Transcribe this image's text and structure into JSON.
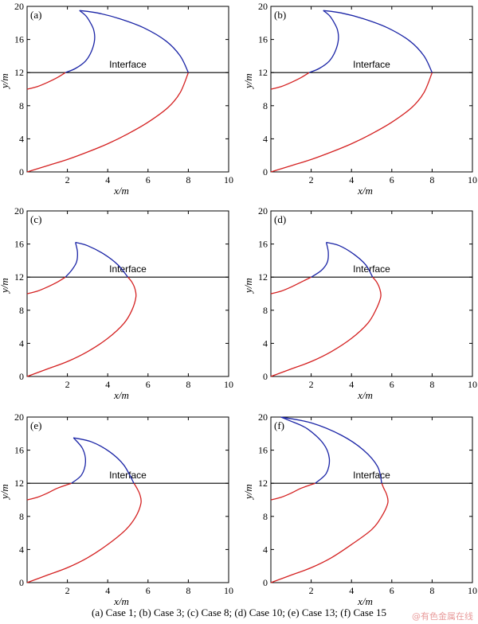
{
  "caption": "(a) Case 1; (b) Case 3; (c) Case 8; (d) Case 10; (e) Case 13; (f) Case 15",
  "watermark": "@有色金属在线",
  "colors": {
    "lower": "#d42020",
    "upper": "#1a24a6",
    "interface": "#000000"
  },
  "chart_data": [
    {
      "type": "line",
      "panel": "(a)",
      "xlabel": "x/m",
      "ylabel": "y/m",
      "xlim": [
        0,
        10
      ],
      "ylim": [
        0,
        20
      ],
      "xticks": [
        2,
        4,
        6,
        8,
        10
      ],
      "yticks": [
        0,
        4,
        8,
        12,
        16,
        20
      ],
      "interface": {
        "y": 12,
        "label": "Interface"
      },
      "series": [
        {
          "curve": "lower",
          "x": [
            0,
            1,
            2,
            3,
            4,
            5,
            6,
            7,
            7.6,
            8.0
          ],
          "y": [
            0,
            0.75,
            1.5,
            2.4,
            3.4,
            4.6,
            6.0,
            7.8,
            9.6,
            12.0
          ]
        },
        {
          "curve": "lower",
          "x": [
            0,
            0.5,
            1,
            1.5,
            1.9
          ],
          "y": [
            10.0,
            10.3,
            10.8,
            11.4,
            12.0
          ]
        },
        {
          "curve": "upper",
          "x": [
            1.9,
            2.4,
            2.9,
            3.2,
            3.35,
            3.3,
            3.1,
            2.9,
            2.6
          ],
          "y": [
            12.0,
            12.5,
            13.4,
            14.6,
            16.0,
            17.2,
            18.2,
            18.9,
            19.5
          ]
        },
        {
          "curve": "upper",
          "x": [
            2.6,
            3.5,
            4.6,
            5.8,
            6.9,
            7.6,
            8.0
          ],
          "y": [
            19.5,
            19.2,
            18.5,
            17.4,
            15.8,
            14.0,
            12.0
          ]
        }
      ]
    },
    {
      "type": "line",
      "panel": "(b)",
      "xlabel": "x/m",
      "ylabel": "y/m",
      "xlim": [
        0,
        10
      ],
      "ylim": [
        0,
        20
      ],
      "xticks": [
        2,
        4,
        6,
        8,
        10
      ],
      "yticks": [
        0,
        4,
        8,
        12,
        16,
        20
      ],
      "interface": {
        "y": 12,
        "label": "Interface"
      },
      "series": [
        {
          "curve": "lower",
          "x": [
            0,
            1,
            2,
            3,
            4,
            5,
            6,
            7,
            7.6,
            8.0
          ],
          "y": [
            0,
            0.75,
            1.5,
            2.4,
            3.4,
            4.6,
            6.0,
            7.8,
            9.6,
            12.0
          ]
        },
        {
          "curve": "lower",
          "x": [
            0,
            0.5,
            1,
            1.5,
            1.9
          ],
          "y": [
            10.0,
            10.3,
            10.8,
            11.4,
            12.0
          ]
        },
        {
          "curve": "upper",
          "x": [
            1.9,
            2.4,
            2.9,
            3.2,
            3.35,
            3.3,
            3.1,
            2.9,
            2.6
          ],
          "y": [
            12.0,
            12.5,
            13.4,
            14.6,
            16.0,
            17.2,
            18.2,
            18.9,
            19.5
          ]
        },
        {
          "curve": "upper",
          "x": [
            2.6,
            3.5,
            4.6,
            5.8,
            6.9,
            7.6,
            8.0
          ],
          "y": [
            19.5,
            19.2,
            18.5,
            17.4,
            15.8,
            14.0,
            12.0
          ]
        }
      ]
    },
    {
      "type": "line",
      "panel": "(c)",
      "xlabel": "x/m",
      "ylabel": "y/m",
      "xlim": [
        0,
        10
      ],
      "ylim": [
        0,
        20
      ],
      "xticks": [
        2,
        4,
        6,
        8,
        10
      ],
      "yticks": [
        0,
        4,
        8,
        12,
        16,
        20
      ],
      "interface": {
        "y": 12,
        "label": "Interface"
      },
      "series": [
        {
          "curve": "lower",
          "x": [
            0,
            1,
            2,
            3,
            4,
            4.8,
            5.2,
            5.4,
            5.35,
            5.2,
            5.0
          ],
          "y": [
            0,
            0.9,
            1.8,
            3.0,
            4.6,
            6.4,
            8.0,
            9.6,
            10.6,
            11.4,
            12.0
          ]
        },
        {
          "curve": "lower",
          "x": [
            0,
            0.5,
            1,
            1.5,
            1.9
          ],
          "y": [
            10.0,
            10.3,
            10.8,
            11.4,
            12.0
          ]
        },
        {
          "curve": "upper",
          "x": [
            1.9,
            2.2,
            2.45,
            2.5,
            2.4
          ],
          "y": [
            12.0,
            12.8,
            13.8,
            15.0,
            16.2
          ]
        },
        {
          "curve": "upper",
          "x": [
            2.4,
            3.0,
            3.8,
            4.5,
            5.0
          ],
          "y": [
            16.2,
            15.8,
            14.8,
            13.5,
            12.0
          ]
        }
      ]
    },
    {
      "type": "line",
      "panel": "(d)",
      "xlabel": "x/m",
      "ylabel": "y/m",
      "xlim": [
        0,
        10
      ],
      "ylim": [
        0,
        20
      ],
      "xticks": [
        2,
        4,
        6,
        8,
        10
      ],
      "yticks": [
        0,
        4,
        8,
        12,
        16,
        20
      ],
      "interface": {
        "y": 12,
        "label": "Interface"
      },
      "series": [
        {
          "curve": "lower",
          "x": [
            0,
            1,
            2,
            3,
            4,
            4.8,
            5.2,
            5.45,
            5.4,
            5.25,
            5.05
          ],
          "y": [
            0,
            0.9,
            1.8,
            3.0,
            4.6,
            6.4,
            8.0,
            9.6,
            10.6,
            11.4,
            12.0
          ]
        },
        {
          "curve": "lower",
          "x": [
            0,
            0.5,
            1,
            1.5,
            2.0
          ],
          "y": [
            10.0,
            10.3,
            10.8,
            11.4,
            12.0
          ]
        },
        {
          "curve": "upper",
          "x": [
            2.0,
            2.5,
            2.8,
            2.85,
            2.75
          ],
          "y": [
            12.0,
            12.8,
            13.8,
            15.0,
            16.2
          ]
        },
        {
          "curve": "upper",
          "x": [
            2.75,
            3.4,
            4.1,
            4.7,
            5.05
          ],
          "y": [
            16.2,
            15.8,
            14.8,
            13.5,
            12.0
          ]
        }
      ]
    },
    {
      "type": "line",
      "panel": "(e)",
      "xlabel": "x/m",
      "ylabel": "y/m",
      "xlim": [
        0,
        10
      ],
      "ylim": [
        0,
        20
      ],
      "xticks": [
        2,
        4,
        6,
        8,
        10
      ],
      "yticks": [
        0,
        4,
        8,
        12,
        16,
        20
      ],
      "interface": {
        "y": 12,
        "label": "Interface"
      },
      "series": [
        {
          "curve": "lower",
          "x": [
            0,
            1,
            2,
            3,
            4,
            4.9,
            5.4,
            5.65,
            5.6,
            5.45,
            5.3
          ],
          "y": [
            0,
            0.9,
            1.8,
            3.0,
            4.6,
            6.4,
            8.0,
            9.6,
            10.6,
            11.4,
            12.0
          ]
        },
        {
          "curve": "lower",
          "x": [
            0,
            0.5,
            1,
            1.5,
            2.2
          ],
          "y": [
            10.0,
            10.3,
            10.8,
            11.4,
            12.0
          ]
        },
        {
          "curve": "upper",
          "x": [
            2.2,
            2.7,
            2.9,
            2.75,
            2.3
          ],
          "y": [
            12.0,
            13.0,
            14.6,
            16.2,
            17.5
          ]
        },
        {
          "curve": "upper",
          "x": [
            2.3,
            3.2,
            4.1,
            4.8,
            5.3
          ],
          "y": [
            17.5,
            17.0,
            15.8,
            14.2,
            12.0
          ]
        }
      ]
    },
    {
      "type": "line",
      "panel": "(f)",
      "xlabel": "x/m",
      "ylabel": "y/m",
      "xlim": [
        0,
        10
      ],
      "ylim": [
        0,
        20
      ],
      "xticks": [
        2,
        4,
        6,
        8,
        10
      ],
      "yticks": [
        0,
        4,
        8,
        12,
        16,
        20
      ],
      "interface": {
        "y": 12,
        "label": "Interface"
      },
      "series": [
        {
          "curve": "lower",
          "x": [
            0,
            1,
            2,
            3,
            4,
            5.0,
            5.5,
            5.8,
            5.75,
            5.6,
            5.5
          ],
          "y": [
            0,
            0.9,
            1.8,
            3.0,
            4.6,
            6.4,
            8.0,
            9.6,
            10.6,
            11.4,
            12.0
          ]
        },
        {
          "curve": "lower",
          "x": [
            0,
            0.5,
            1,
            1.5,
            2.2
          ],
          "y": [
            10.0,
            10.3,
            10.8,
            11.4,
            12.0
          ]
        },
        {
          "curve": "upper",
          "x": [
            2.2,
            2.75,
            2.9,
            2.6,
            1.8,
            0.9,
            0.5
          ],
          "y": [
            12.0,
            13.2,
            15.0,
            16.8,
            18.6,
            19.6,
            20.0
          ]
        },
        {
          "curve": "upper",
          "x": [
            0.5,
            2.0,
            3.5,
            4.6,
            5.3,
            5.5
          ],
          "y": [
            20.0,
            19.3,
            17.8,
            16.0,
            14.0,
            12.0
          ]
        }
      ]
    }
  ]
}
